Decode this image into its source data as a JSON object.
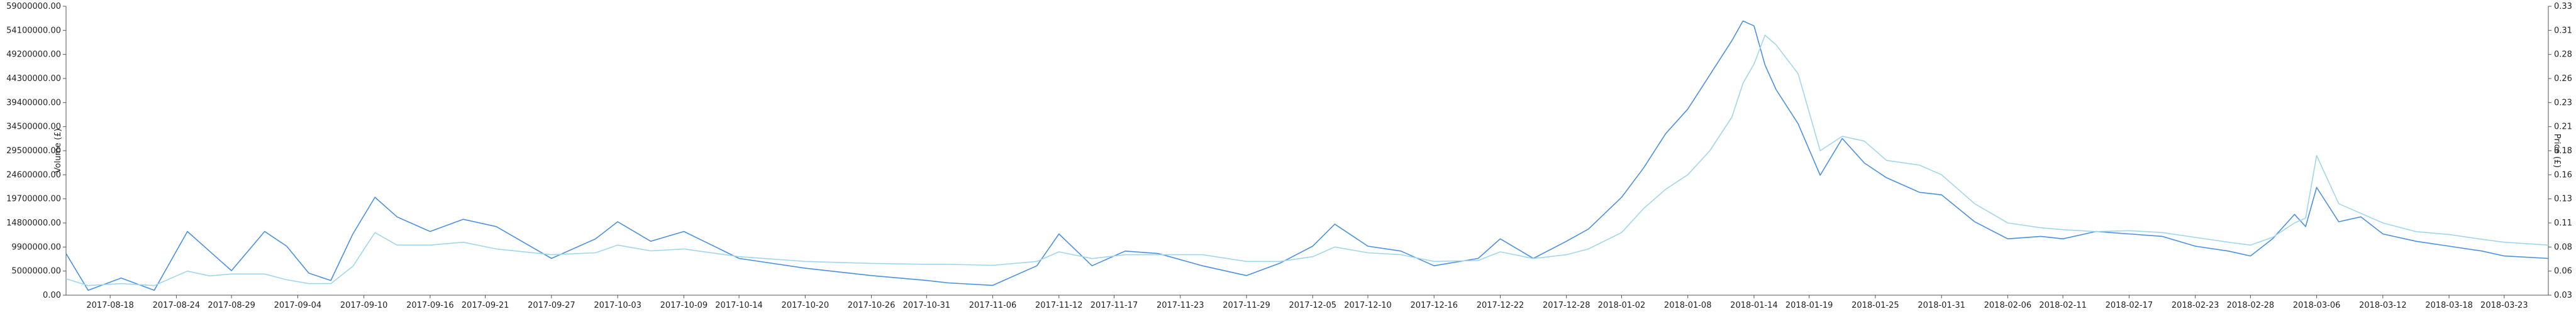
{
  "chart_data": {
    "type": "line",
    "title": "",
    "xlabel": "",
    "ylabel_left": "Volume (£)",
    "ylabel_right": "Price (£)",
    "x_ticks": [
      "2017-08-18",
      "2017-08-24",
      "2017-08-29",
      "2017-09-04",
      "2017-09-10",
      "2017-09-16",
      "2017-09-21",
      "2017-09-27",
      "2017-10-03",
      "2017-10-09",
      "2017-10-14",
      "2017-10-20",
      "2017-10-26",
      "2017-10-31",
      "2017-11-06",
      "2017-11-12",
      "2017-11-17",
      "2017-11-23",
      "2017-11-29",
      "2017-12-05",
      "2017-12-10",
      "2017-12-16",
      "2017-12-22",
      "2017-12-28",
      "2018-01-02",
      "2018-01-08",
      "2018-01-14",
      "2018-01-19",
      "2018-01-25",
      "2018-01-31",
      "2018-02-06",
      "2018-02-11",
      "2018-02-17",
      "2018-02-23",
      "2018-02-28",
      "2018-03-06",
      "2018-03-12",
      "2018-03-18",
      "2018-03-23"
    ],
    "y_left_ticks": [
      "0.00",
      "5000000.00",
      "9900000.00",
      "14800000.00",
      "19700000.00",
      "24600000.00",
      "29500000.00",
      "34500000.00",
      "39400000.00",
      "44300000.00",
      "49200000.00",
      "54100000.00",
      "59000000.00"
    ],
    "y_right_ticks": [
      "0.03",
      "0.06",
      "0.08",
      "0.11",
      "0.13",
      "0.16",
      "0.18",
      "0.21",
      "0.23",
      "0.26",
      "0.28",
      "0.31",
      "0.33"
    ],
    "ylim_left": [
      0,
      59000000
    ],
    "ylim_right": [
      0.03,
      0.33
    ],
    "x_start": "2017-08-14",
    "x_end": "2018-03-27",
    "grid": false,
    "series": [
      {
        "axis": "left",
        "color": "#4a90e2",
        "x": [
          "2017-08-14",
          "2017-08-16",
          "2017-08-19",
          "2017-08-22",
          "2017-08-25",
          "2017-08-27",
          "2017-08-29",
          "2017-09-01",
          "2017-09-03",
          "2017-09-05",
          "2017-09-07",
          "2017-09-09",
          "2017-09-11",
          "2017-09-13",
          "2017-09-16",
          "2017-09-19",
          "2017-09-22",
          "2017-09-27",
          "2017-10-01",
          "2017-10-03",
          "2017-10-06",
          "2017-10-09",
          "2017-10-14",
          "2017-10-20",
          "2017-10-26",
          "2017-10-31",
          "2017-11-02",
          "2017-11-06",
          "2017-11-10",
          "2017-11-12",
          "2017-11-15",
          "2017-11-18",
          "2017-11-21",
          "2017-11-25",
          "2017-11-29",
          "2017-12-02",
          "2017-12-05",
          "2017-12-07",
          "2017-12-10",
          "2017-12-13",
          "2017-12-16",
          "2017-12-20",
          "2017-12-22",
          "2017-12-25",
          "2017-12-28",
          "2017-12-30",
          "2018-01-02",
          "2018-01-04",
          "2018-01-06",
          "2018-01-08",
          "2018-01-10",
          "2018-01-12",
          "2018-01-13",
          "2018-01-14",
          "2018-01-15",
          "2018-01-16",
          "2018-01-18",
          "2018-01-20",
          "2018-01-22",
          "2018-01-24",
          "2018-01-26",
          "2018-01-29",
          "2018-01-31",
          "2018-02-03",
          "2018-02-06",
          "2018-02-09",
          "2018-02-11",
          "2018-02-14",
          "2018-02-17",
          "2018-02-20",
          "2018-02-23",
          "2018-02-26",
          "2018-02-28",
          "2018-03-02",
          "2018-03-04",
          "2018-03-05",
          "2018-03-06",
          "2018-03-08",
          "2018-03-10",
          "2018-03-12",
          "2018-03-15",
          "2018-03-18",
          "2018-03-21",
          "2018-03-23",
          "2018-03-27"
        ],
        "values": [
          8.5,
          1.0,
          3.5,
          1.0,
          13.0,
          9.0,
          5.0,
          13.0,
          10.0,
          4.5,
          3.0,
          12.5,
          20.0,
          16.0,
          13.0,
          15.5,
          14.0,
          7.5,
          11.5,
          15.0,
          11.0,
          13.0,
          7.5,
          5.5,
          4.0,
          3.0,
          2.5,
          2.0,
          6.0,
          12.5,
          6.0,
          9.0,
          8.5,
          6.0,
          4.0,
          6.5,
          10.0,
          14.5,
          10.0,
          9.0,
          6.0,
          7.5,
          11.5,
          7.5,
          11.0,
          13.5,
          20.0,
          26.0,
          33.0,
          38.0,
          45.0,
          52.0,
          56.0,
          55.0,
          47.0,
          42.0,
          35.0,
          24.5,
          32.0,
          27.0,
          24.0,
          21.0,
          20.5,
          15.0,
          11.5,
          12.0,
          11.5,
          13.0,
          12.5,
          12.0,
          10.0,
          9.0,
          8.0,
          11.5,
          16.5,
          14.0,
          22.0,
          15.0,
          16.0,
          12.5,
          11.0,
          10.0,
          9.0,
          8.0,
          7.5
        ]
      },
      {
        "axis": "right",
        "color": "#9fd6ee",
        "x": [
          "2017-08-14",
          "2017-08-16",
          "2017-08-19",
          "2017-08-22",
          "2017-08-25",
          "2017-08-27",
          "2017-08-29",
          "2017-09-01",
          "2017-09-03",
          "2017-09-05",
          "2017-09-07",
          "2017-09-09",
          "2017-09-11",
          "2017-09-13",
          "2017-09-16",
          "2017-09-19",
          "2017-09-22",
          "2017-09-27",
          "2017-10-01",
          "2017-10-03",
          "2017-10-06",
          "2017-10-09",
          "2017-10-14",
          "2017-10-20",
          "2017-10-26",
          "2017-10-31",
          "2017-11-02",
          "2017-11-06",
          "2017-11-10",
          "2017-11-12",
          "2017-11-15",
          "2017-11-18",
          "2017-11-21",
          "2017-11-25",
          "2017-11-29",
          "2017-12-02",
          "2017-12-05",
          "2017-12-07",
          "2017-12-10",
          "2017-12-13",
          "2017-12-16",
          "2017-12-20",
          "2017-12-22",
          "2017-12-25",
          "2017-12-28",
          "2017-12-30",
          "2018-01-02",
          "2018-01-04",
          "2018-01-06",
          "2018-01-08",
          "2018-01-10",
          "2018-01-12",
          "2018-01-13",
          "2018-01-14",
          "2018-01-15",
          "2018-01-16",
          "2018-01-18",
          "2018-01-20",
          "2018-01-22",
          "2018-01-24",
          "2018-01-26",
          "2018-01-29",
          "2018-01-31",
          "2018-02-03",
          "2018-02-06",
          "2018-02-09",
          "2018-02-11",
          "2018-02-14",
          "2018-02-17",
          "2018-02-20",
          "2018-02-23",
          "2018-02-26",
          "2018-02-28",
          "2018-03-02",
          "2018-03-04",
          "2018-03-05",
          "2018-03-06",
          "2018-03-08",
          "2018-03-10",
          "2018-03-12",
          "2018-03-15",
          "2018-03-18",
          "2018-03-21",
          "2018-03-23",
          "2018-03-27"
        ],
        "values": [
          0.047,
          0.04,
          0.042,
          0.04,
          0.055,
          0.05,
          0.052,
          0.052,
          0.046,
          0.042,
          0.042,
          0.06,
          0.095,
          0.082,
          0.082,
          0.085,
          0.078,
          0.072,
          0.074,
          0.082,
          0.076,
          0.078,
          0.07,
          0.065,
          0.063,
          0.062,
          0.062,
          0.061,
          0.065,
          0.075,
          0.068,
          0.072,
          0.072,
          0.072,
          0.065,
          0.065,
          0.07,
          0.08,
          0.074,
          0.072,
          0.065,
          0.066,
          0.075,
          0.068,
          0.072,
          0.078,
          0.095,
          0.12,
          0.14,
          0.155,
          0.18,
          0.215,
          0.25,
          0.27,
          0.3,
          0.29,
          0.26,
          0.18,
          0.195,
          0.19,
          0.17,
          0.165,
          0.155,
          0.125,
          0.105,
          0.1,
          0.098,
          0.096,
          0.097,
          0.095,
          0.09,
          0.085,
          0.082,
          0.09,
          0.105,
          0.11,
          0.175,
          0.125,
          0.115,
          0.105,
          0.096,
          0.093,
          0.088,
          0.085,
          0.082
        ]
      }
    ]
  }
}
